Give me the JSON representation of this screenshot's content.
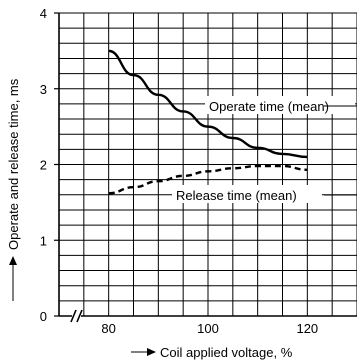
{
  "chart_data": {
    "type": "line",
    "title": "",
    "xlabel": "Coil applied voltage, %",
    "ylabel": "Operate and release time, ms",
    "x_ticks": [
      80,
      100,
      120
    ],
    "y_ticks": [
      0,
      1,
      2,
      3,
      4
    ],
    "xlim": [
      70,
      130
    ],
    "ylim": [
      0,
      4
    ],
    "axis_break": true,
    "grid": true,
    "legend": "none",
    "series": [
      {
        "name": "Operate time (mean)",
        "style": "solid",
        "x": [
          80,
          85,
          90,
          95,
          100,
          105,
          110,
          115,
          120
        ],
        "y": [
          3.5,
          3.18,
          2.92,
          2.7,
          2.5,
          2.35,
          2.22,
          2.14,
          2.1
        ]
      },
      {
        "name": "Release time (mean)",
        "style": "dashed",
        "x": [
          80,
          85,
          90,
          95,
          100,
          105,
          110,
          115,
          120
        ],
        "y": [
          1.62,
          1.7,
          1.78,
          1.85,
          1.91,
          1.95,
          1.98,
          1.98,
          1.93
        ]
      }
    ]
  }
}
